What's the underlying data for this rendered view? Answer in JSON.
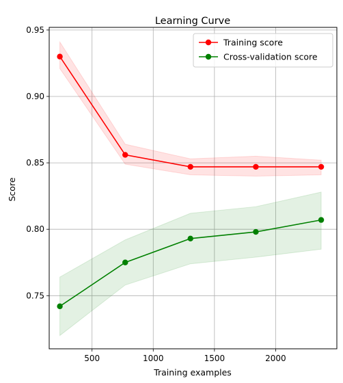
{
  "chart_data": {
    "type": "line",
    "title": "Learning Curve",
    "xlabel": "Training examples",
    "ylabel": "Score",
    "xlim": [
      150,
      2500
    ],
    "ylim": [
      0.71,
      0.952
    ],
    "xticks": [
      500,
      1000,
      1500,
      2000
    ],
    "xtick_labels": [
      "500",
      "1000",
      "1500",
      "2000"
    ],
    "yticks": [
      0.75,
      0.8,
      0.85,
      0.9,
      0.95
    ],
    "ytick_labels": [
      "0.75",
      "0.80",
      "0.85",
      "0.90",
      "0.95"
    ],
    "grid": true,
    "legend_position": "top-right",
    "x": [
      237,
      771,
      1304,
      1838,
      2372
    ],
    "series": [
      {
        "name": "Training score",
        "color": "#ff0000",
        "values": [
          0.93,
          0.856,
          0.847,
          0.847,
          0.847
        ],
        "band_lower": [
          0.921,
          0.849,
          0.841,
          0.84,
          0.841
        ],
        "band_upper": [
          0.941,
          0.864,
          0.853,
          0.855,
          0.852
        ]
      },
      {
        "name": "Cross-validation score",
        "color": "#008000",
        "values": [
          0.742,
          0.775,
          0.793,
          0.798,
          0.807
        ],
        "band_lower": [
          0.72,
          0.758,
          0.774,
          0.779,
          0.785
        ],
        "band_upper": [
          0.764,
          0.792,
          0.812,
          0.817,
          0.828
        ]
      }
    ]
  }
}
